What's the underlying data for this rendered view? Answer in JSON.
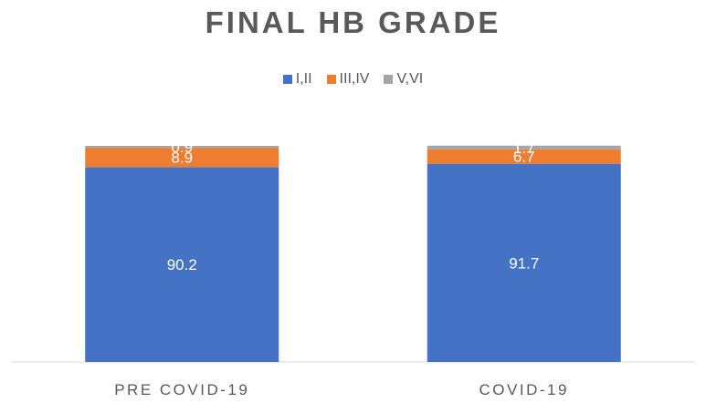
{
  "chart_data": {
    "type": "bar",
    "stacked": true,
    "title": "FINAL HB GRADE",
    "categories": [
      "PRE COVID-19",
      "COVID-19"
    ],
    "series": [
      {
        "name": "I,II",
        "values": [
          90.2,
          91.7
        ],
        "color": "#4472C4"
      },
      {
        "name": "III,IV",
        "values": [
          8.9,
          6.7
        ],
        "color": "#ED7D31"
      },
      {
        "name": "V,VI",
        "values": [
          0.9,
          1.7
        ],
        "color": "#A5A5A5"
      }
    ],
    "data_labels": true,
    "ylim": [
      0,
      100
    ],
    "grid": false,
    "legend_position": "top",
    "xlabel": "",
    "ylabel": ""
  }
}
